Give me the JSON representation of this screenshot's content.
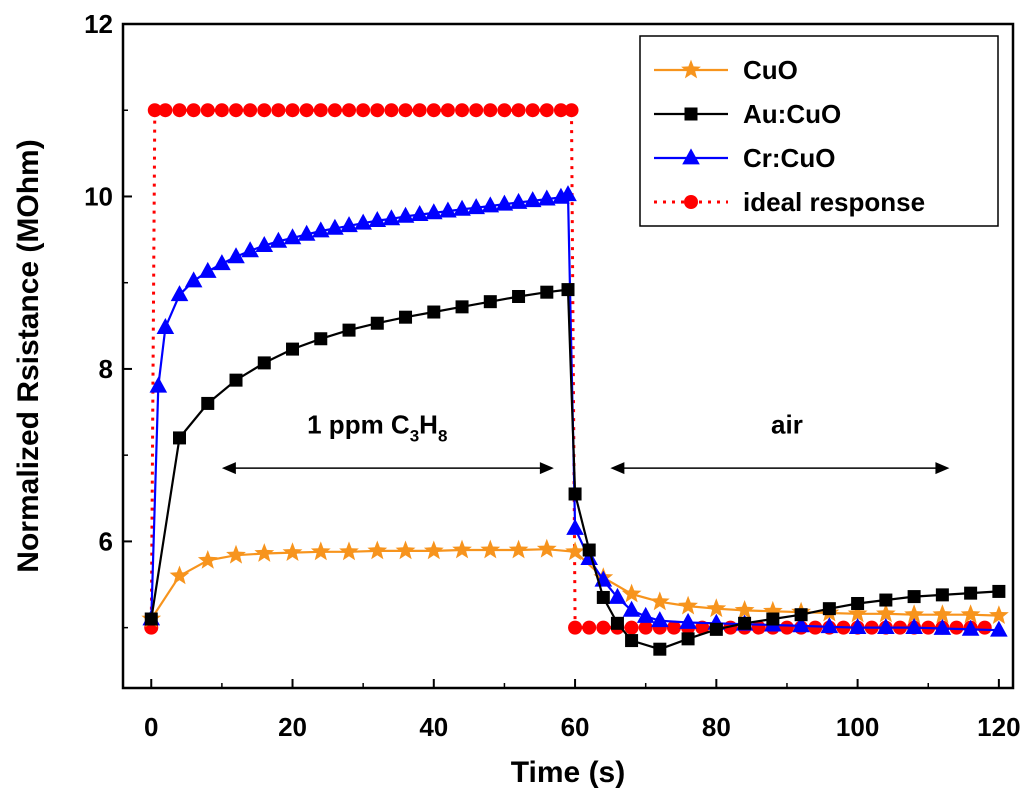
{
  "chart_data": {
    "type": "line",
    "title": "",
    "xlabel": "Time (s)",
    "ylabel": "Normalized Rsistance (MOhm)",
    "xlim": [
      -4,
      122
    ],
    "ylim": [
      4.3,
      12
    ],
    "xticks": [
      0,
      20,
      40,
      60,
      80,
      100,
      120
    ],
    "yticks": [
      6,
      8,
      10,
      12
    ],
    "grid": false,
    "legend_position": "top-right",
    "series": [
      {
        "name": "CuO",
        "color": "#f7941d",
        "marker": "star",
        "x": [
          0,
          4,
          8,
          12,
          16,
          20,
          24,
          28,
          32,
          36,
          40,
          44,
          48,
          52,
          56,
          60,
          64,
          68,
          72,
          76,
          80,
          84,
          88,
          92,
          96,
          100,
          104,
          108,
          112,
          116,
          120
        ],
        "y": [
          5.1,
          5.6,
          5.78,
          5.84,
          5.86,
          5.87,
          5.88,
          5.88,
          5.89,
          5.89,
          5.89,
          5.9,
          5.9,
          5.9,
          5.91,
          5.88,
          5.58,
          5.39,
          5.3,
          5.25,
          5.22,
          5.2,
          5.19,
          5.18,
          5.17,
          5.16,
          5.16,
          5.15,
          5.15,
          5.15,
          5.14
        ]
      },
      {
        "name": "Au:CuO",
        "color": "#000000",
        "marker": "square",
        "x": [
          0,
          4,
          8,
          12,
          16,
          20,
          24,
          28,
          32,
          36,
          40,
          44,
          48,
          52,
          56,
          59,
          60,
          62,
          64,
          66,
          68,
          72,
          76,
          80,
          84,
          88,
          92,
          96,
          100,
          104,
          108,
          112,
          116,
          120
        ],
        "y": [
          5.1,
          7.2,
          7.6,
          7.87,
          8.07,
          8.23,
          8.35,
          8.45,
          8.53,
          8.6,
          8.66,
          8.72,
          8.78,
          8.84,
          8.89,
          8.92,
          6.55,
          5.9,
          5.35,
          5.05,
          4.85,
          4.75,
          4.87,
          4.98,
          5.05,
          5.1,
          5.15,
          5.22,
          5.28,
          5.32,
          5.36,
          5.38,
          5.4,
          5.42
        ]
      },
      {
        "name": "Cr:CuO",
        "color": "#0000ff",
        "marker": "triangle",
        "x": [
          0,
          1,
          2,
          4,
          6,
          8,
          10,
          12,
          14,
          16,
          18,
          20,
          22,
          24,
          26,
          28,
          30,
          32,
          34,
          36,
          38,
          40,
          42,
          44,
          46,
          48,
          50,
          52,
          54,
          56,
          58,
          59,
          60,
          62,
          64,
          66,
          68,
          70,
          72,
          76,
          80,
          84,
          88,
          92,
          96,
          100,
          104,
          108,
          112,
          116,
          120
        ],
        "y": [
          5.1,
          7.8,
          8.48,
          8.86,
          9.02,
          9.13,
          9.22,
          9.3,
          9.37,
          9.43,
          9.48,
          9.52,
          9.56,
          9.6,
          9.63,
          9.66,
          9.69,
          9.72,
          9.74,
          9.77,
          9.79,
          9.81,
          9.83,
          9.85,
          9.87,
          9.89,
          9.91,
          9.93,
          9.95,
          9.97,
          9.99,
          10.02,
          6.15,
          5.8,
          5.55,
          5.35,
          5.2,
          5.13,
          5.08,
          5.06,
          5.05,
          5.04,
          5.03,
          5.02,
          5.01,
          5.0,
          5.0,
          5.0,
          4.99,
          4.98,
          4.97
        ]
      },
      {
        "name": "ideal response",
        "color": "#ff0000",
        "marker": "circle",
        "x": [
          0,
          0.5,
          2,
          4,
          6,
          8,
          10,
          12,
          14,
          16,
          18,
          20,
          22,
          24,
          26,
          28,
          30,
          32,
          34,
          36,
          38,
          40,
          42,
          44,
          46,
          48,
          50,
          52,
          54,
          56,
          58,
          59.5,
          60,
          62,
          64,
          66,
          68,
          70,
          72,
          74,
          76,
          78,
          80,
          82,
          84,
          86,
          88,
          90,
          92,
          94,
          96,
          98,
          100,
          102,
          104,
          106,
          108,
          110,
          112,
          114,
          116,
          118
        ],
        "y": [
          5.0,
          11.0,
          11.0,
          11.0,
          11.0,
          11.0,
          11.0,
          11.0,
          11.0,
          11.0,
          11.0,
          11.0,
          11.0,
          11.0,
          11.0,
          11.0,
          11.0,
          11.0,
          11.0,
          11.0,
          11.0,
          11.0,
          11.0,
          11.0,
          11.0,
          11.0,
          11.0,
          11.0,
          11.0,
          11.0,
          11.0,
          11.0,
          5.0,
          5.0,
          5.0,
          5.0,
          5.0,
          5.0,
          5.0,
          5.0,
          5.0,
          5.0,
          5.0,
          5.0,
          5.0,
          5.0,
          5.0,
          5.0,
          5.0,
          5.0,
          5.0,
          5.0,
          5.0,
          5.0,
          5.0,
          5.0,
          5.0,
          5.0,
          5.0,
          5.0,
          5.0,
          5.0
        ]
      }
    ],
    "annotations": [
      {
        "name": "annotation-propane",
        "text": "1 ppm C",
        "sub1": "3",
        "mid": "H",
        "sub2": "8",
        "arrow_x": [
          10,
          57
        ],
        "arrow_y": 6.85,
        "text_x": 32,
        "text_y": 7.25
      },
      {
        "name": "annotation-air",
        "text": "air",
        "arrow_x": [
          65,
          113
        ],
        "arrow_y": 6.85,
        "text_x": 90,
        "text_y": 7.25
      }
    ]
  }
}
